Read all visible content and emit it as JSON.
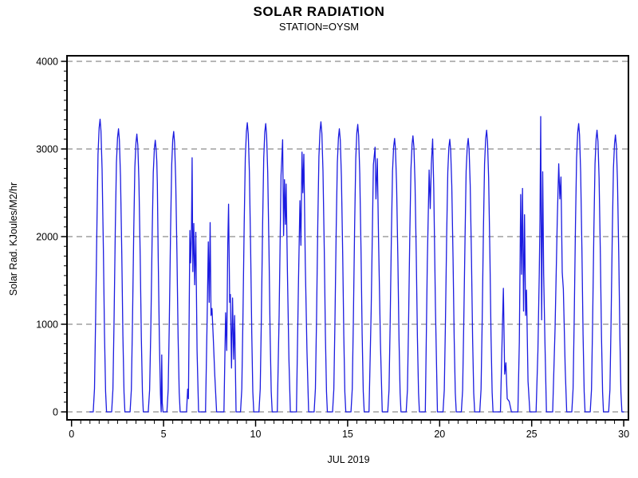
{
  "header": {
    "title": "SOLAR RADIATION",
    "subtitle": "STATION=OYSM"
  },
  "chart_data": {
    "type": "line",
    "title": "SOLAR RADIATION",
    "subtitle": "STATION=OYSM",
    "xlabel": "JUL 2019",
    "ylabel": "Solar Rad. KJoules/M2/hr",
    "xlim": [
      0,
      30
    ],
    "ylim": [
      0,
      4000
    ],
    "x_major_ticks": [
      0,
      5,
      10,
      15,
      20,
      25,
      30
    ],
    "x_minor_step": 0.5,
    "y_major_ticks": [
      0,
      1000,
      2000,
      3000,
      4000
    ],
    "y_minor_per_major": 8,
    "grid": "horizontal dashed gray at each y major tick",
    "legend": "none",
    "line_color": "#1c1ce0",
    "grid_color": "#8c8c8c",
    "frame_color": "#000000",
    "x_start": 1.0,
    "x_end": 30.0,
    "clear_day_profile": [
      [
        0.18,
        0
      ],
      [
        0.25,
        0.08
      ],
      [
        0.31,
        0.32
      ],
      [
        0.38,
        0.65
      ],
      [
        0.44,
        0.88
      ],
      [
        0.5,
        0.97
      ],
      [
        0.55,
        1.0
      ],
      [
        0.6,
        0.96
      ],
      [
        0.66,
        0.83
      ],
      [
        0.73,
        0.56
      ],
      [
        0.79,
        0.27
      ],
      [
        0.85,
        0.07
      ],
      [
        0.9,
        0
      ]
    ],
    "days": [
      {
        "d": 1,
        "type": "clear",
        "peak": 3340
      },
      {
        "d": 2,
        "type": "clear",
        "peak": 3230
      },
      {
        "d": 3,
        "type": "clear",
        "peak": 3170
      },
      {
        "d": 4,
        "type": "cloudy",
        "points": [
          [
            4.17,
            0
          ],
          [
            4.24,
            250
          ],
          [
            4.31,
            990
          ],
          [
            4.38,
            2015
          ],
          [
            4.44,
            2730
          ],
          [
            4.5,
            3010
          ],
          [
            4.55,
            3100
          ],
          [
            4.6,
            2980
          ],
          [
            4.63,
            2860
          ],
          [
            4.66,
            2600
          ],
          [
            4.71,
            1750
          ],
          [
            4.77,
            850
          ],
          [
            4.83,
            200
          ],
          [
            4.87,
            0
          ],
          [
            4.9,
            650
          ],
          [
            4.93,
            100
          ],
          [
            4.97,
            0
          ]
        ]
      },
      {
        "d": 5,
        "type": "clear",
        "peak": 3200
      },
      {
        "d": 6,
        "type": "cloudy",
        "points": [
          [
            6.25,
            0
          ],
          [
            6.31,
            260
          ],
          [
            6.35,
            150
          ],
          [
            6.43,
            2070
          ],
          [
            6.47,
            1700
          ],
          [
            6.51,
            1990
          ],
          [
            6.55,
            2900
          ],
          [
            6.59,
            1600
          ],
          [
            6.64,
            2150
          ],
          [
            6.69,
            1450
          ],
          [
            6.75,
            2050
          ],
          [
            6.82,
            700
          ],
          [
            6.9,
            0
          ]
        ]
      },
      {
        "d": 7,
        "type": "cloudy",
        "points": [
          [
            7.28,
            0
          ],
          [
            7.37,
            1100
          ],
          [
            7.43,
            1940
          ],
          [
            7.48,
            1250
          ],
          [
            7.53,
            2160
          ],
          [
            7.58,
            1100
          ],
          [
            7.63,
            1180
          ],
          [
            7.7,
            850
          ],
          [
            7.78,
            420
          ],
          [
            7.88,
            0
          ]
        ]
      },
      {
        "d": 8,
        "type": "cloudy",
        "points": [
          [
            8.28,
            0
          ],
          [
            8.37,
            1130
          ],
          [
            8.43,
            700
          ],
          [
            8.49,
            1900
          ],
          [
            8.53,
            2370
          ],
          [
            8.59,
            1250
          ],
          [
            8.63,
            1340
          ],
          [
            8.69,
            500
          ],
          [
            8.75,
            1300
          ],
          [
            8.81,
            600
          ],
          [
            8.86,
            1100
          ],
          [
            8.94,
            0
          ]
        ]
      },
      {
        "d": 9,
        "type": "clear",
        "peak": 3300
      },
      {
        "d": 10,
        "type": "clear",
        "peak": 3290
      },
      {
        "d": 11,
        "type": "cloudy",
        "points": [
          [
            11.18,
            0
          ],
          [
            11.28,
            1100
          ],
          [
            11.38,
            2700
          ],
          [
            11.47,
            3105
          ],
          [
            11.52,
            2010
          ],
          [
            11.57,
            2650
          ],
          [
            11.62,
            2140
          ],
          [
            11.66,
            2600
          ],
          [
            11.73,
            1600
          ],
          [
            11.81,
            600
          ],
          [
            11.89,
            0
          ]
        ]
      },
      {
        "d": 12,
        "type": "cloudy",
        "points": [
          [
            12.22,
            0
          ],
          [
            12.33,
            1500
          ],
          [
            12.41,
            2410
          ],
          [
            12.46,
            1900
          ],
          [
            12.52,
            2965
          ],
          [
            12.57,
            2500
          ],
          [
            12.62,
            2940
          ],
          [
            12.7,
            1700
          ],
          [
            12.79,
            700
          ],
          [
            12.88,
            0
          ]
        ]
      },
      {
        "d": 13,
        "type": "clear",
        "peak": 3310
      },
      {
        "d": 14,
        "type": "clear",
        "peak": 3230
      },
      {
        "d": 15,
        "type": "clear",
        "peak": 3280
      },
      {
        "d": 16,
        "type": "cloudy",
        "points": [
          [
            16.16,
            0
          ],
          [
            16.28,
            1150
          ],
          [
            16.4,
            2820
          ],
          [
            16.49,
            3020
          ],
          [
            16.54,
            2430
          ],
          [
            16.61,
            2890
          ],
          [
            16.68,
            1950
          ],
          [
            16.78,
            800
          ],
          [
            16.88,
            0
          ]
        ]
      },
      {
        "d": 17,
        "type": "clear",
        "peak": 3120
      },
      {
        "d": 18,
        "type": "clear",
        "peak": 3150
      },
      {
        "d": 19,
        "type": "cloudy",
        "points": [
          [
            19.22,
            0
          ],
          [
            19.33,
            1700
          ],
          [
            19.43,
            2760
          ],
          [
            19.49,
            2320
          ],
          [
            19.55,
            2830
          ],
          [
            19.62,
            3115
          ],
          [
            19.68,
            2550
          ],
          [
            19.77,
            1200
          ],
          [
            19.88,
            0
          ]
        ]
      },
      {
        "d": 20,
        "type": "clear",
        "peak": 3110
      },
      {
        "d": 21,
        "type": "clear",
        "peak": 3120
      },
      {
        "d": 22,
        "type": "clear",
        "peak": 3215
      },
      {
        "d": 23,
        "type": "cloudy",
        "points": [
          [
            23.3,
            0
          ],
          [
            23.4,
            900
          ],
          [
            23.46,
            1410
          ],
          [
            23.53,
            430
          ],
          [
            23.6,
            560
          ],
          [
            23.67,
            150
          ],
          [
            23.78,
            120
          ],
          [
            23.9,
            0
          ]
        ]
      },
      {
        "d": 24,
        "type": "cloudy",
        "points": [
          [
            24.25,
            0
          ],
          [
            24.33,
            800
          ],
          [
            24.4,
            2480
          ],
          [
            24.45,
            1570
          ],
          [
            24.5,
            2550
          ],
          [
            24.56,
            1150
          ],
          [
            24.61,
            2250
          ],
          [
            24.67,
            1100
          ],
          [
            24.72,
            1390
          ],
          [
            24.8,
            350
          ],
          [
            24.9,
            0
          ]
        ]
      },
      {
        "d": 25,
        "type": "cloudy",
        "points": [
          [
            25.24,
            0
          ],
          [
            25.34,
            700
          ],
          [
            25.41,
            1580
          ],
          [
            25.45,
            2200
          ],
          [
            25.49,
            3370
          ],
          [
            25.54,
            1050
          ],
          [
            25.6,
            2740
          ],
          [
            25.65,
            1580
          ],
          [
            25.72,
            800
          ],
          [
            25.8,
            0
          ]
        ]
      },
      {
        "d": 26,
        "type": "cloudy",
        "points": [
          [
            26.14,
            0
          ],
          [
            26.27,
            950
          ],
          [
            26.39,
            2200
          ],
          [
            26.47,
            2830
          ],
          [
            26.53,
            2430
          ],
          [
            26.59,
            2680
          ],
          [
            26.66,
            1590
          ],
          [
            26.72,
            1400
          ],
          [
            26.82,
            500
          ],
          [
            26.9,
            0
          ]
        ]
      },
      {
        "d": 27,
        "type": "clear",
        "peak": 3290
      },
      {
        "d": 28,
        "type": "clear",
        "peak": 3215
      },
      {
        "d": 29,
        "type": "clear",
        "peak": 3160
      }
    ]
  }
}
